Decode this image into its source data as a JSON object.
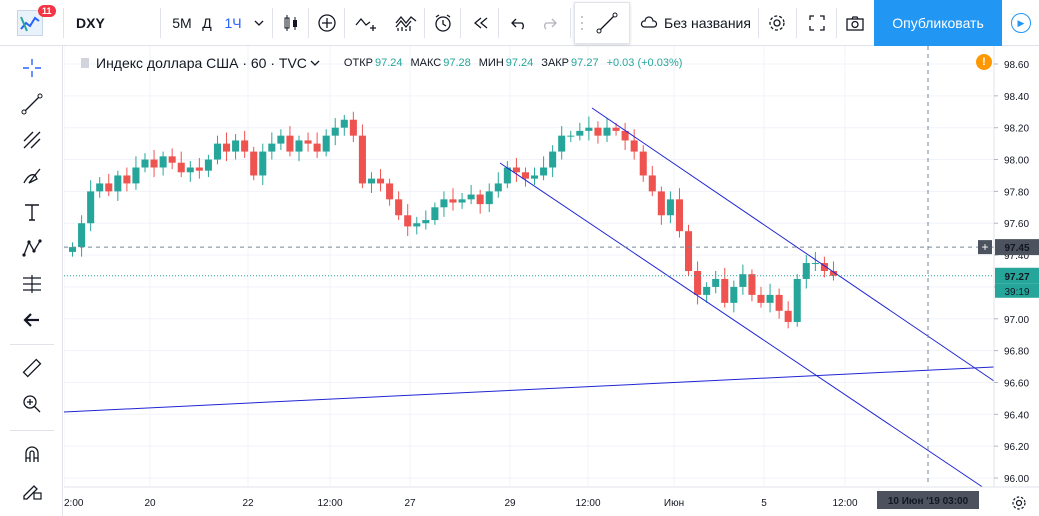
{
  "topbar": {
    "notif_count": "11",
    "symbol": "DXY",
    "intervals": [
      "5M",
      "Д",
      "1Ч"
    ],
    "active_interval": "1Ч",
    "layout_name": "Без названия",
    "publish_label": "Опубликовать"
  },
  "legend": {
    "title": "Индекс доллара США",
    "interval": "60",
    "source": "TVC",
    "open_label": "ОТКР",
    "open": "97.24",
    "high_label": "МАКС",
    "high": "97.28",
    "low_label": "МИН",
    "low": "97.24",
    "close_label": "ЗАКР",
    "close": "97.27",
    "change": "+0.03 (+0.03%)"
  },
  "price_axis": {
    "ticks": [
      "98.60",
      "98.40",
      "98.20",
      "98.00",
      "97.80",
      "97.60",
      "97.40",
      "97.20",
      "97.00",
      "96.80",
      "96.60",
      "96.40",
      "96.20",
      "96.00"
    ],
    "crosshair_price": "97.45",
    "last_price": "97.27",
    "countdown": "39:19"
  },
  "time_axis": {
    "ticks": [
      "2:00",
      "20",
      "22",
      "12:00",
      "27",
      "29",
      "12:00",
      "Июн",
      "5",
      "12:00"
    ],
    "crosshair_label": "10 Июн '19  03:00"
  },
  "colors": {
    "up": "#26a69a",
    "down": "#ef5350",
    "line": "#1f25d4",
    "accent": "#2196f3"
  },
  "chart_data": {
    "type": "candlestick",
    "ylim": [
      95.95,
      98.7
    ],
    "series": [
      {
        "values": [
          97.45,
          97.6,
          97.8,
          97.85,
          97.8,
          97.9,
          97.85,
          97.95,
          98.0,
          97.95,
          98.02,
          97.98,
          97.92,
          97.95,
          97.93,
          98.0,
          98.1,
          98.05,
          98.12,
          98.05,
          97.9,
          98.05,
          98.1,
          98.15,
          98.05,
          98.12,
          98.1,
          98.05,
          98.15,
          98.2,
          98.25,
          98.15,
          97.85,
          97.88,
          97.85,
          97.75,
          97.65,
          97.58,
          97.6,
          97.62,
          97.7,
          97.75,
          97.73,
          97.75,
          97.78,
          97.72,
          97.8,
          97.85,
          97.95,
          97.92,
          97.88,
          97.9,
          97.95,
          98.05,
          98.15,
          98.15,
          98.18,
          98.2,
          98.15,
          98.2,
          98.18,
          98.12,
          98.05,
          97.9,
          97.8,
          97.65,
          97.75,
          97.55,
          97.3,
          97.15,
          97.2,
          97.25,
          97.1,
          97.2,
          97.28,
          97.15,
          97.1,
          97.15,
          97.05,
          96.98,
          97.25,
          97.35,
          97.35,
          97.3,
          97.27
        ]
      }
    ]
  }
}
